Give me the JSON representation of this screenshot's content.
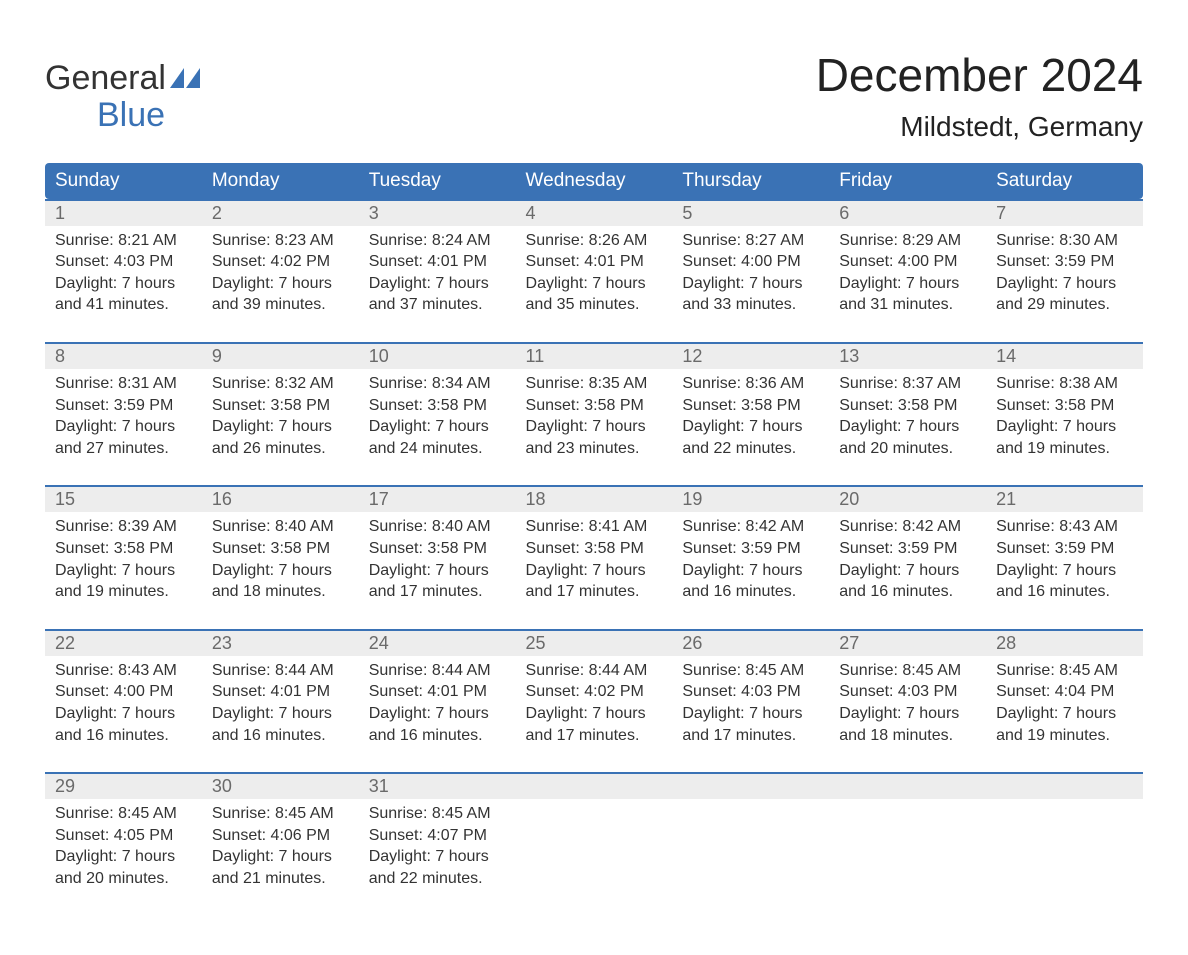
{
  "branding": {
    "logo_line1": "General",
    "logo_line2": "Blue",
    "logo_color_primary": "#333333",
    "logo_color_accent": "#3a72b5"
  },
  "header": {
    "month_title": "December 2024",
    "location": "Mildstedt, Germany"
  },
  "styling": {
    "header_bg": "#3a72b5",
    "header_text_color": "#ffffff",
    "daynum_bg": "#ededed",
    "daynum_color": "#6a6a6a",
    "week_divider_color": "#3a72b5",
    "body_text_color": "#333333",
    "page_bg": "#ffffff",
    "header_fontsize": 19,
    "daynum_fontsize": 18,
    "body_fontsize": 16,
    "title_fontsize": 46,
    "location_fontsize": 28
  },
  "day_names": [
    "Sunday",
    "Monday",
    "Tuesday",
    "Wednesday",
    "Thursday",
    "Friday",
    "Saturday"
  ],
  "weeks": [
    [
      {
        "num": "1",
        "sunrise": "Sunrise: 8:21 AM",
        "sunset": "Sunset: 4:03 PM",
        "day1": "Daylight: 7 hours",
        "day2": "and 41 minutes."
      },
      {
        "num": "2",
        "sunrise": "Sunrise: 8:23 AM",
        "sunset": "Sunset: 4:02 PM",
        "day1": "Daylight: 7 hours",
        "day2": "and 39 minutes."
      },
      {
        "num": "3",
        "sunrise": "Sunrise: 8:24 AM",
        "sunset": "Sunset: 4:01 PM",
        "day1": "Daylight: 7 hours",
        "day2": "and 37 minutes."
      },
      {
        "num": "4",
        "sunrise": "Sunrise: 8:26 AM",
        "sunset": "Sunset: 4:01 PM",
        "day1": "Daylight: 7 hours",
        "day2": "and 35 minutes."
      },
      {
        "num": "5",
        "sunrise": "Sunrise: 8:27 AM",
        "sunset": "Sunset: 4:00 PM",
        "day1": "Daylight: 7 hours",
        "day2": "and 33 minutes."
      },
      {
        "num": "6",
        "sunrise": "Sunrise: 8:29 AM",
        "sunset": "Sunset: 4:00 PM",
        "day1": "Daylight: 7 hours",
        "day2": "and 31 minutes."
      },
      {
        "num": "7",
        "sunrise": "Sunrise: 8:30 AM",
        "sunset": "Sunset: 3:59 PM",
        "day1": "Daylight: 7 hours",
        "day2": "and 29 minutes."
      }
    ],
    [
      {
        "num": "8",
        "sunrise": "Sunrise: 8:31 AM",
        "sunset": "Sunset: 3:59 PM",
        "day1": "Daylight: 7 hours",
        "day2": "and 27 minutes."
      },
      {
        "num": "9",
        "sunrise": "Sunrise: 8:32 AM",
        "sunset": "Sunset: 3:58 PM",
        "day1": "Daylight: 7 hours",
        "day2": "and 26 minutes."
      },
      {
        "num": "10",
        "sunrise": "Sunrise: 8:34 AM",
        "sunset": "Sunset: 3:58 PM",
        "day1": "Daylight: 7 hours",
        "day2": "and 24 minutes."
      },
      {
        "num": "11",
        "sunrise": "Sunrise: 8:35 AM",
        "sunset": "Sunset: 3:58 PM",
        "day1": "Daylight: 7 hours",
        "day2": "and 23 minutes."
      },
      {
        "num": "12",
        "sunrise": "Sunrise: 8:36 AM",
        "sunset": "Sunset: 3:58 PM",
        "day1": "Daylight: 7 hours",
        "day2": "and 22 minutes."
      },
      {
        "num": "13",
        "sunrise": "Sunrise: 8:37 AM",
        "sunset": "Sunset: 3:58 PM",
        "day1": "Daylight: 7 hours",
        "day2": "and 20 minutes."
      },
      {
        "num": "14",
        "sunrise": "Sunrise: 8:38 AM",
        "sunset": "Sunset: 3:58 PM",
        "day1": "Daylight: 7 hours",
        "day2": "and 19 minutes."
      }
    ],
    [
      {
        "num": "15",
        "sunrise": "Sunrise: 8:39 AM",
        "sunset": "Sunset: 3:58 PM",
        "day1": "Daylight: 7 hours",
        "day2": "and 19 minutes."
      },
      {
        "num": "16",
        "sunrise": "Sunrise: 8:40 AM",
        "sunset": "Sunset: 3:58 PM",
        "day1": "Daylight: 7 hours",
        "day2": "and 18 minutes."
      },
      {
        "num": "17",
        "sunrise": "Sunrise: 8:40 AM",
        "sunset": "Sunset: 3:58 PM",
        "day1": "Daylight: 7 hours",
        "day2": "and 17 minutes."
      },
      {
        "num": "18",
        "sunrise": "Sunrise: 8:41 AM",
        "sunset": "Sunset: 3:58 PM",
        "day1": "Daylight: 7 hours",
        "day2": "and 17 minutes."
      },
      {
        "num": "19",
        "sunrise": "Sunrise: 8:42 AM",
        "sunset": "Sunset: 3:59 PM",
        "day1": "Daylight: 7 hours",
        "day2": "and 16 minutes."
      },
      {
        "num": "20",
        "sunrise": "Sunrise: 8:42 AM",
        "sunset": "Sunset: 3:59 PM",
        "day1": "Daylight: 7 hours",
        "day2": "and 16 minutes."
      },
      {
        "num": "21",
        "sunrise": "Sunrise: 8:43 AM",
        "sunset": "Sunset: 3:59 PM",
        "day1": "Daylight: 7 hours",
        "day2": "and 16 minutes."
      }
    ],
    [
      {
        "num": "22",
        "sunrise": "Sunrise: 8:43 AM",
        "sunset": "Sunset: 4:00 PM",
        "day1": "Daylight: 7 hours",
        "day2": "and 16 minutes."
      },
      {
        "num": "23",
        "sunrise": "Sunrise: 8:44 AM",
        "sunset": "Sunset: 4:01 PM",
        "day1": "Daylight: 7 hours",
        "day2": "and 16 minutes."
      },
      {
        "num": "24",
        "sunrise": "Sunrise: 8:44 AM",
        "sunset": "Sunset: 4:01 PM",
        "day1": "Daylight: 7 hours",
        "day2": "and 16 minutes."
      },
      {
        "num": "25",
        "sunrise": "Sunrise: 8:44 AM",
        "sunset": "Sunset: 4:02 PM",
        "day1": "Daylight: 7 hours",
        "day2": "and 17 minutes."
      },
      {
        "num": "26",
        "sunrise": "Sunrise: 8:45 AM",
        "sunset": "Sunset: 4:03 PM",
        "day1": "Daylight: 7 hours",
        "day2": "and 17 minutes."
      },
      {
        "num": "27",
        "sunrise": "Sunrise: 8:45 AM",
        "sunset": "Sunset: 4:03 PM",
        "day1": "Daylight: 7 hours",
        "day2": "and 18 minutes."
      },
      {
        "num": "28",
        "sunrise": "Sunrise: 8:45 AM",
        "sunset": "Sunset: 4:04 PM",
        "day1": "Daylight: 7 hours",
        "day2": "and 19 minutes."
      }
    ],
    [
      {
        "num": "29",
        "sunrise": "Sunrise: 8:45 AM",
        "sunset": "Sunset: 4:05 PM",
        "day1": "Daylight: 7 hours",
        "day2": "and 20 minutes."
      },
      {
        "num": "30",
        "sunrise": "Sunrise: 8:45 AM",
        "sunset": "Sunset: 4:06 PM",
        "day1": "Daylight: 7 hours",
        "day2": "and 21 minutes."
      },
      {
        "num": "31",
        "sunrise": "Sunrise: 8:45 AM",
        "sunset": "Sunset: 4:07 PM",
        "day1": "Daylight: 7 hours",
        "day2": "and 22 minutes."
      },
      null,
      null,
      null,
      null
    ]
  ]
}
